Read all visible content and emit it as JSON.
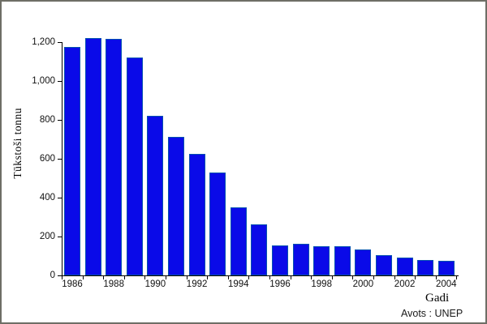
{
  "frame": {
    "background": "#ffffff",
    "border_color": "#6e6e66"
  },
  "chart_data": {
    "type": "bar",
    "title": "",
    "ylabel": "Tūkstoši tonnu",
    "xlabel": "Gadi",
    "source_note": "Avots : UNEP",
    "categories": [
      "1986",
      "1987",
      "1988",
      "1989",
      "1990",
      "1991",
      "1992",
      "1993",
      "1994",
      "1995",
      "1996",
      "1997",
      "1998",
      "1999",
      "2000",
      "2001",
      "2002",
      "2003",
      "2004"
    ],
    "values": [
      1175,
      1220,
      1215,
      1120,
      820,
      712,
      625,
      530,
      350,
      264,
      155,
      164,
      150,
      148,
      134,
      104,
      91,
      80,
      74
    ],
    "x_tick_labels": [
      "1986",
      "1988",
      "1990",
      "1992",
      "1994",
      "1996",
      "1998",
      "2000",
      "2002",
      "2004"
    ],
    "y_tick_values": [
      0,
      200,
      400,
      600,
      800,
      1000,
      1200
    ],
    "y_tick_labels": [
      "0",
      "200",
      "400",
      "600",
      "800",
      "1,000",
      "1,200"
    ],
    "ylim": [
      0,
      1200
    ],
    "bar_color": "#0a0ae8",
    "bar_edge_color": "#0f9090",
    "axis_color": "#000000",
    "grid": false,
    "legend": "none"
  }
}
